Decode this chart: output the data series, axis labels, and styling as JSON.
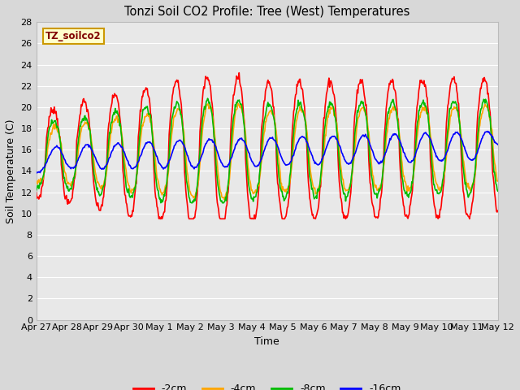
{
  "title": "Tonzi Soil CO2 Profile: Tree (West) Temperatures",
  "xlabel": "Time",
  "ylabel": "Soil Temperature (C)",
  "ylim": [
    0,
    28
  ],
  "yticks": [
    0,
    2,
    4,
    6,
    8,
    10,
    12,
    14,
    16,
    18,
    20,
    22,
    24,
    26,
    28
  ],
  "xtick_labels": [
    "Apr 27",
    "Apr 28",
    "Apr 29",
    "Apr 30",
    "May 1",
    "May 2",
    "May 3",
    "May 4",
    "May 5",
    "May 6",
    "May 7",
    "May 8",
    "May 9",
    "May 10",
    "May 11",
    "May 12"
  ],
  "legend_label": "TZ_soilco2",
  "legend_box_color": "#ffffcc",
  "legend_text_color": "#800000",
  "series_labels": [
    "-2cm",
    "-4cm",
    "-8cm",
    "-16cm"
  ],
  "series_colors": [
    "#ff0000",
    "#ffa500",
    "#00bb00",
    "#0000ff"
  ],
  "line_width": 1.2,
  "plot_bg_color": "#e8e8e8",
  "grid_color": "#ffffff",
  "fig_bg_color": "#d8d8d8"
}
